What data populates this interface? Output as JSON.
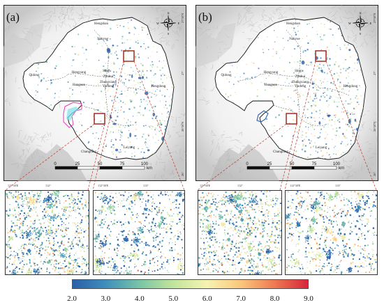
{
  "panels": [
    {
      "label": "(a)",
      "variant": "a",
      "cities": [
        "Hengshan",
        "Nanyue",
        "Hengyang",
        "Shigu",
        "Zhuhui",
        "Zhengxiang",
        "Yanfeng",
        "Qidong",
        "Hengnan",
        "Hengdong",
        "Changning",
        "Leiyang"
      ],
      "coords_right": [
        "27°30'N",
        "27°",
        "26°30'N",
        "26°"
      ],
      "coords_bottom": [
        "111°30'E",
        "112°",
        "112°30'E",
        "113°"
      ]
    },
    {
      "label": "(b)",
      "variant": "b",
      "cities": [
        "Hengshan",
        "Nanyue",
        "Hengyang",
        "Shigu",
        "Zhuhui",
        "Zhengxiang",
        "Yanfeng",
        "Qidong",
        "Hengnan",
        "Hengdong",
        "Changning",
        "Leiyang"
      ],
      "coords_right": [
        "27°30'N",
        "27°",
        "26°30'N",
        "26°"
      ],
      "coords_bottom": [
        "111°30'E",
        "112°",
        "112°30'E",
        "113°"
      ]
    }
  ],
  "scale_bar": {
    "ticks": [
      "0",
      "25",
      "50",
      "75",
      "100"
    ],
    "unit": "km"
  },
  "north_arrow": {
    "letters": [
      "N",
      "S",
      "W",
      "E"
    ]
  },
  "colorbar": {
    "ticks": [
      "2.0",
      "3.0",
      "4.0",
      "5.0",
      "6.0",
      "7.0",
      "8.0",
      "9.0"
    ],
    "min": 2.0,
    "max": 9.0,
    "colors": [
      "#2b5fa8",
      "#3f8fbd",
      "#79c5a6",
      "#c2e59b",
      "#f6f3b2",
      "#fbc77c",
      "#ee7a52",
      "#d7263b"
    ]
  }
}
